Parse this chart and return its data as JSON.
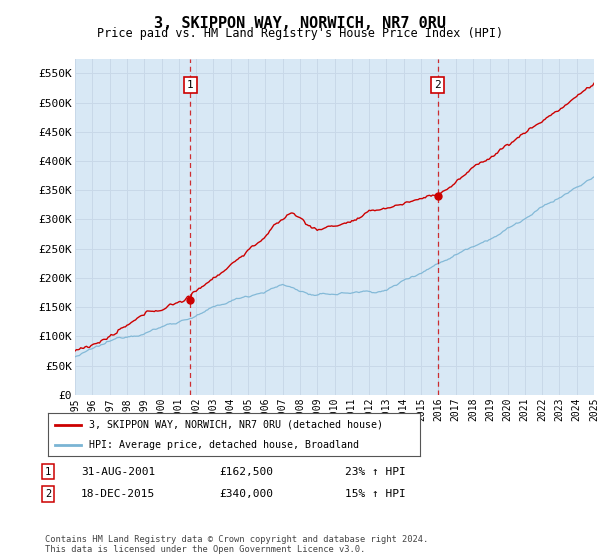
{
  "title": "3, SKIPPON WAY, NORWICH, NR7 0RU",
  "subtitle": "Price paid vs. HM Land Registry's House Price Index (HPI)",
  "ylim": [
    0,
    575000
  ],
  "yticks": [
    0,
    50000,
    100000,
    150000,
    200000,
    250000,
    300000,
    350000,
    400000,
    450000,
    500000,
    550000
  ],
  "ytick_labels": [
    "£0",
    "£50K",
    "£100K",
    "£150K",
    "£200K",
    "£250K",
    "£300K",
    "£350K",
    "£400K",
    "£450K",
    "£500K",
    "£550K"
  ],
  "hpi_color": "#7ab4d4",
  "price_color": "#cc0000",
  "marker1_year": 2001.67,
  "marker2_year": 2015.96,
  "marker1_value": 162500,
  "marker2_value": 340000,
  "legend_label1": "3, SKIPPON WAY, NORWICH, NR7 0RU (detached house)",
  "legend_label2": "HPI: Average price, detached house, Broadland",
  "annotation1_date": "31-AUG-2001",
  "annotation1_price": "£162,500",
  "annotation1_hpi": "23% ↑ HPI",
  "annotation2_date": "18-DEC-2015",
  "annotation2_price": "£340,000",
  "annotation2_hpi": "15% ↑ HPI",
  "footer": "Contains HM Land Registry data © Crown copyright and database right 2024.\nThis data is licensed under the Open Government Licence v3.0.",
  "plot_bg_color": "#d8e8f5",
  "grid_color": "#c8d8e8",
  "fig_bg_color": "#ffffff"
}
